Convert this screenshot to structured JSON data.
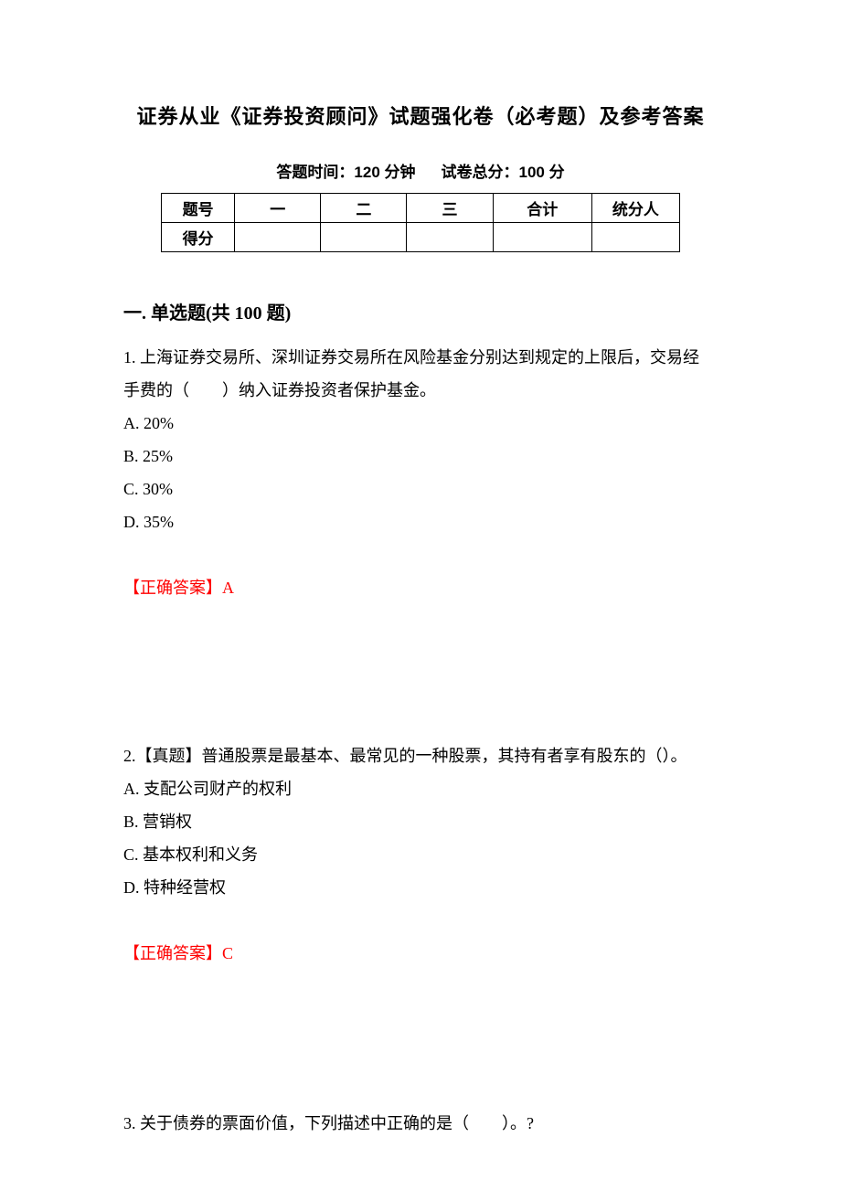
{
  "title": "证券从业《证券投资顾问》试题强化卷（必考题）及参考答案",
  "subtitle_time_label": "答题时间：",
  "subtitle_time_value": "120 分钟",
  "subtitle_score_label": "试卷总分：",
  "subtitle_score_value": "100 分",
  "table": {
    "row1": [
      "题号",
      "一",
      "二",
      "三",
      "合计",
      "统分人"
    ],
    "row2_label": "得分"
  },
  "section_heading": "一. 单选题(共 100 题)",
  "q1": {
    "text_line1": "1. 上海证券交易所、深圳证券交易所在风险基金分别达到规定的上限后，交易经",
    "text_line2": "手费的（　　）纳入证券投资者保护基金。",
    "A": "A. 20%",
    "B": "B. 25%",
    "C": "C. 30%",
    "D": "D. 35%",
    "answer": "【正确答案】A"
  },
  "q2": {
    "text": "2.【真题】普通股票是最基本、最常见的一种股票，其持有者享有股东的（）。",
    "A": "A. 支配公司财产的权利",
    "B": "B. 营销权",
    "C": "C. 基本权利和义务",
    "D": "D. 特种经营权",
    "answer": "【正确答案】C"
  },
  "q3": {
    "text": "3. 关于债券的票面价值，下列描述中正确的是（　　）。?"
  },
  "colors": {
    "text": "#000000",
    "answer": "#ff0000",
    "background": "#ffffff",
    "border": "#000000"
  },
  "fonts": {
    "title_size": 22,
    "subtitle_size": 17,
    "body_size": 18,
    "section_heading_size": 20
  }
}
